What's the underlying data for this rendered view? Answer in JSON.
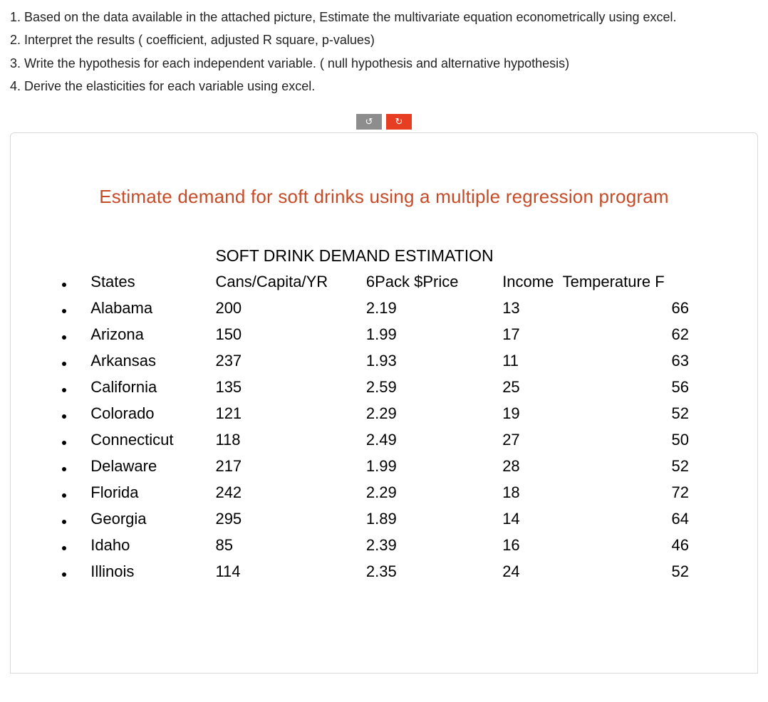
{
  "questions": [
    "1. Based on the data available in the attached picture, Estimate the multivariate equation econometrically using excel.",
    "2. Interpret the results ( coefficient, adjusted R square, p-values)",
    "3. Write the hypothesis for each independent variable. ( null hypothesis and alternative hypothesis)",
    "4. Derive the elasticities for each variable using excel."
  ],
  "buttons": {
    "undo": "↺",
    "redo": "↻"
  },
  "slide": {
    "title": "Estimate demand for soft drinks using a multiple regression program",
    "section_title": "SOFT DRINK DEMAND ESTIMATION",
    "headers": {
      "state": "States",
      "cans": "Cans/Capita/YR",
      "price": "6Pack $Price",
      "income": "Income",
      "temp": "Temperature F"
    },
    "rows": [
      {
        "state": "Alabama",
        "cans": "200",
        "price": "2.19",
        "income": "13",
        "temp": "66"
      },
      {
        "state": "Arizona",
        "cans": "150",
        "price": "1.99",
        "income": "17",
        "temp": "62"
      },
      {
        "state": "Arkansas",
        "cans": "237",
        "price": "1.93",
        "income": "11",
        "temp": "63"
      },
      {
        "state": "California",
        "cans": "135",
        "price": "2.59",
        "income": "25",
        "temp": "56"
      },
      {
        "state": "Colorado",
        "cans": "121",
        "price": "2.29",
        "income": "19",
        "temp": "52"
      },
      {
        "state": "Connecticut",
        "cans": "118",
        "price": "2.49",
        "income": "27",
        "temp": "50"
      },
      {
        "state": "Delaware",
        "cans": "217",
        "price": "1.99",
        "income": "28",
        "temp": "52"
      },
      {
        "state": "Florida",
        "cans": "242",
        "price": "2.29",
        "income": "18",
        "temp": "72"
      },
      {
        "state": "Georgia",
        "cans": "295",
        "price": "1.89",
        "income": "14",
        "temp": "64"
      },
      {
        "state": "Idaho",
        "cans": "85",
        "price": "2.39",
        "income": "16",
        "temp": "46"
      },
      {
        "state": "Illinois",
        "cans": "114",
        "price": "2.35",
        "income": "24",
        "temp": "52"
      }
    ]
  },
  "colors": {
    "title": "#c84b28",
    "btn_gray": "#8d8d8d",
    "btn_red": "#e73d22",
    "panel_border": "#d9d9d9",
    "text": "#000000",
    "q_text": "#222222"
  }
}
